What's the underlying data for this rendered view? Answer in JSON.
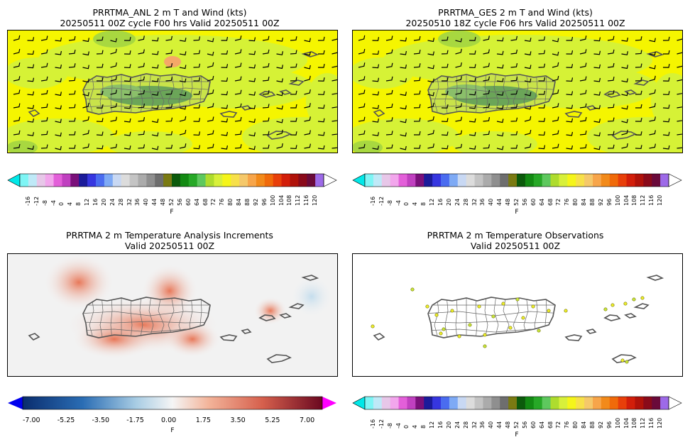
{
  "panels": {
    "tl": {
      "title1": "PRRTMA_ANL 2 m T and Wind (kts)",
      "title2": "20250511 00Z cycle F00 hrs Valid 20250511 00Z"
    },
    "tr": {
      "title1": "PRRTMA_GES 2 m T and Wind (kts)",
      "title2": "20250510 18Z cycle F06 hrs Valid 20250511 00Z"
    },
    "bl": {
      "title1": "PRRTMA 2 m Temperature Analysis Increments",
      "title2": "Valid 20250511 00Z"
    },
    "br": {
      "title1": "PRRTMA 2 m Temperature Observations",
      "title2": "Valid 20250511 00Z"
    }
  },
  "colorbar_temp": {
    "unit": "F",
    "ticks": [
      "-16",
      "-12",
      "-8",
      "-4",
      "0",
      "4",
      "8",
      "12",
      "16",
      "20",
      "24",
      "28",
      "32",
      "36",
      "40",
      "44",
      "48",
      "52",
      "56",
      "60",
      "64",
      "68",
      "72",
      "76",
      "80",
      "84",
      "88",
      "92",
      "96",
      "100",
      "104",
      "108",
      "112",
      "116",
      "120"
    ],
    "colors": [
      "#7ef5f5",
      "#bfe9f7",
      "#e7c7e8",
      "#f2a6ec",
      "#e35fd9",
      "#c040c0",
      "#7a107a",
      "#1b1b9a",
      "#3636e0",
      "#4a6cf0",
      "#7eaaf5",
      "#c8d8f3",
      "#dcdcdc",
      "#c4c4c4",
      "#ababab",
      "#8f8f8f",
      "#6e6e6e",
      "#7a7a12",
      "#0c5a0c",
      "#138a13",
      "#27a827",
      "#5ec85e",
      "#aedc2e",
      "#d8f03a",
      "#f5f51a",
      "#f7e04a",
      "#f5c86a",
      "#f7a54a",
      "#f28a1a",
      "#f06a0a",
      "#e83f0a",
      "#d21e0a",
      "#b0120a",
      "#8a0a1a",
      "#6a0a3a",
      "#9d6ae8"
    ],
    "under_color": "#00e8e8",
    "over_color": "#ffffff"
  },
  "colorbar_incr": {
    "unit": "F",
    "ticks": [
      "-7.00",
      "-5.25",
      "-3.50",
      "-1.75",
      "0.00",
      "1.75",
      "3.50",
      "5.25",
      "7.00"
    ],
    "under_color": "#0000ee",
    "over_color": "#ff00ff"
  },
  "map_colors": {
    "ocean_yellow": "#f5f500",
    "land_green": "#d6f236",
    "mid_green": "#a8d840",
    "dark_green": "#5a9a5a",
    "orange": "#f5a868"
  }
}
